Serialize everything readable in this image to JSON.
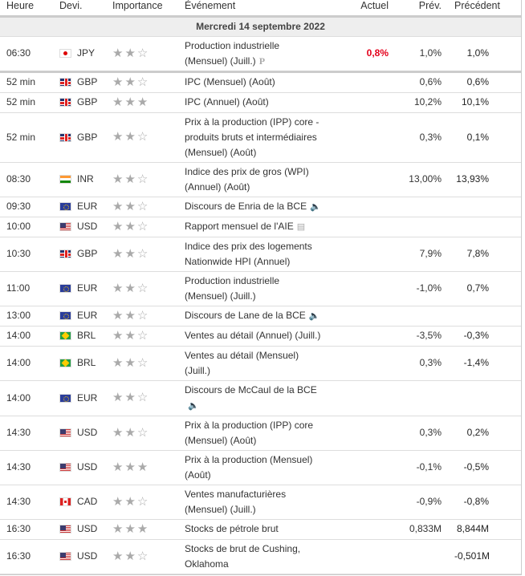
{
  "headers": {
    "time": "Heure",
    "currency": "Devi.",
    "importance": "Importance",
    "event": "Événement",
    "actual": "Actuel",
    "forecast": "Prév.",
    "previous": "Précédent"
  },
  "date": "Mercredi 14 septembre 2022",
  "colors": {
    "actual_negative": "#e4001b",
    "star": "#aaaaaa"
  },
  "rows": [
    {
      "time": "06:30",
      "flag": "jp",
      "currency": "JPY",
      "stars": 2,
      "event": "Production industrielle (Mensuel) (Juill.)",
      "icon": "preliminary-icon",
      "actual": "0,8%",
      "forecast": "1,0%",
      "previous": "1,0%"
    },
    {
      "time": "52 min",
      "flag": "gb",
      "currency": "GBP",
      "stars": 2,
      "event": "IPC (Mensuel) (Août)",
      "actual": "",
      "forecast": "0,6%",
      "previous": "0,6%"
    },
    {
      "time": "52 min",
      "flag": "gb",
      "currency": "GBP",
      "stars": 3,
      "event": "IPC (Annuel) (Août)",
      "actual": "",
      "forecast": "10,2%",
      "previous": "10,1%"
    },
    {
      "time": "52 min",
      "flag": "gb",
      "currency": "GBP",
      "stars": 2,
      "event": "Prix à la production (IPP) core - produits bruts et intermédiaires (Mensuel) (Août)",
      "actual": "",
      "forecast": "0,3%",
      "previous": "0,1%"
    },
    {
      "time": "08:30",
      "flag": "in",
      "currency": "INR",
      "stars": 2,
      "event": "Indice des prix de gros (WPI) (Annuel) (Août)",
      "actual": "",
      "forecast": "13,00%",
      "previous": "13,93%"
    },
    {
      "time": "09:30",
      "flag": "eu",
      "currency": "EUR",
      "stars": 2,
      "event": "Discours de Enria de la BCE",
      "icon": "speaker-icon",
      "actual": "",
      "forecast": "",
      "previous": ""
    },
    {
      "time": "10:00",
      "flag": "us",
      "currency": "USD",
      "stars": 2,
      "event": "Rapport mensuel de l'AIE",
      "icon": "report-icon",
      "actual": "",
      "forecast": "",
      "previous": ""
    },
    {
      "time": "10:30",
      "flag": "gb",
      "currency": "GBP",
      "stars": 2,
      "event": "Indice des prix des logements Nationwide HPI (Annuel)",
      "actual": "",
      "forecast": "7,9%",
      "previous": "7,8%"
    },
    {
      "time": "11:00",
      "flag": "eu",
      "currency": "EUR",
      "stars": 2,
      "event": "Production industrielle (Mensuel) (Juill.)",
      "actual": "",
      "forecast": "-1,0%",
      "previous": "0,7%"
    },
    {
      "time": "13:00",
      "flag": "eu",
      "currency": "EUR",
      "stars": 2,
      "event": "Discours de Lane de la BCE",
      "icon": "speaker-icon",
      "actual": "",
      "forecast": "",
      "previous": ""
    },
    {
      "time": "14:00",
      "flag": "br",
      "currency": "BRL",
      "stars": 2,
      "event": "Ventes au détail (Annuel) (Juill.)",
      "actual": "",
      "forecast": "-3,5%",
      "previous": "-0,3%"
    },
    {
      "time": "14:00",
      "flag": "br",
      "currency": "BRL",
      "stars": 2,
      "event": "Ventes au détail (Mensuel) (Juill.)",
      "actual": "",
      "forecast": "0,3%",
      "previous": "-1,4%"
    },
    {
      "time": "14:00",
      "flag": "eu",
      "currency": "EUR",
      "stars": 2,
      "event": "Discours de McCaul de la BCE",
      "icon": "speaker-icon",
      "wrapicon": true,
      "actual": "",
      "forecast": "",
      "previous": ""
    },
    {
      "time": "14:30",
      "flag": "us",
      "currency": "USD",
      "stars": 2,
      "event": "Prix à la production (IPP) core (Mensuel) (Août)",
      "actual": "",
      "forecast": "0,3%",
      "previous": "0,2%"
    },
    {
      "time": "14:30",
      "flag": "us",
      "currency": "USD",
      "stars": 3,
      "event": "Prix à la production (Mensuel) (Août)",
      "actual": "",
      "forecast": "-0,1%",
      "previous": "-0,5%"
    },
    {
      "time": "14:30",
      "flag": "ca",
      "currency": "CAD",
      "stars": 2,
      "event": "Ventes manufacturières (Mensuel) (Juill.)",
      "actual": "",
      "forecast": "-0,9%",
      "previous": "-0,8%"
    },
    {
      "time": "16:30",
      "flag": "us",
      "currency": "USD",
      "stars": 3,
      "event": "Stocks de pétrole brut",
      "actual": "",
      "forecast": "0,833M",
      "previous": "8,844M"
    },
    {
      "time": "16:30",
      "flag": "us",
      "currency": "USD",
      "stars": 2,
      "event": "Stocks de brut de Cushing, Oklahoma",
      "actual": "",
      "forecast": "",
      "previous": "-0,501M"
    }
  ]
}
